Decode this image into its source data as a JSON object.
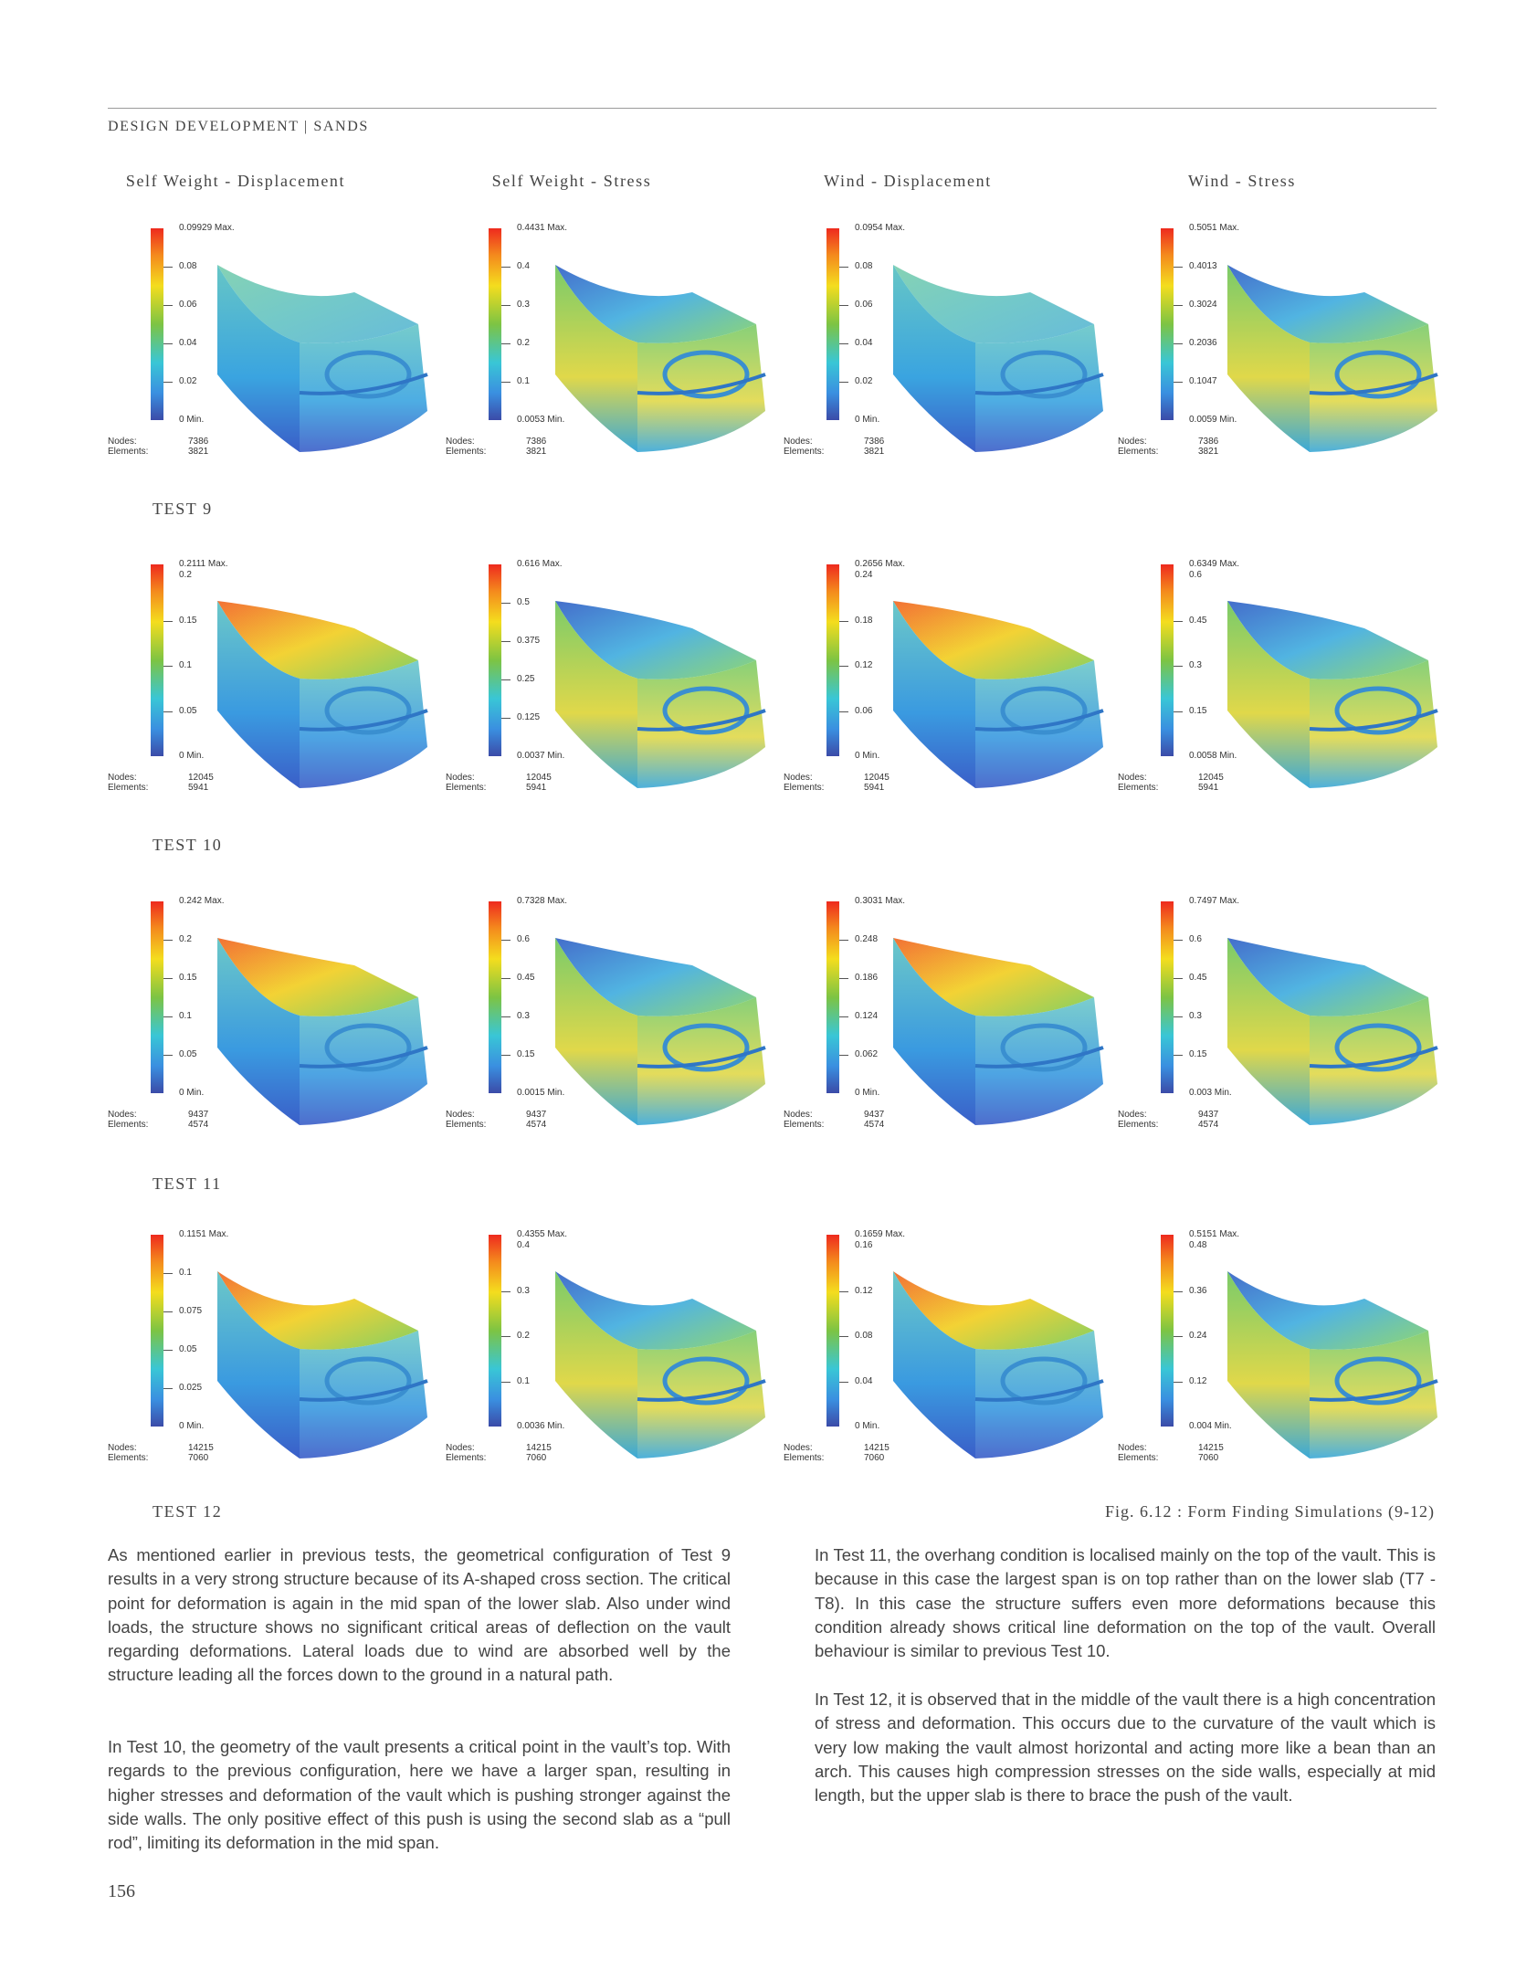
{
  "header": "DESIGN DEVELOPMENT  |  SANDS",
  "column_titles": [
    "Self Weight - Displacement",
    "Self Weight - Stress",
    "Wind - Displacement",
    "Wind - Stress"
  ],
  "rows": [
    {
      "label": "TEST 9",
      "nodes": "7386",
      "elements": "3821",
      "cells": [
        {
          "max": "0.09929 Max.",
          "min": "0 Min.",
          "ticks": [
            "0.08",
            "0.06",
            "0.04",
            "0.02"
          ]
        },
        {
          "max": "0.4431 Max.",
          "min": "0.0053 Min.",
          "ticks": [
            "0.4",
            "0.3",
            "0.2",
            "0.1"
          ]
        },
        {
          "max": "0.0954 Max.",
          "min": "0 Min.",
          "ticks": [
            "0.08",
            "0.06",
            "0.04",
            "0.02"
          ]
        },
        {
          "max": "0.5051 Max.",
          "min": "0.0059 Min.",
          "ticks": [
            "0.4013",
            "0.3024",
            "0.2036",
            "0.1047"
          ]
        }
      ]
    },
    {
      "label": "TEST 10",
      "nodes": "12045",
      "elements": "5941",
      "cells": [
        {
          "max": "0.2111 Max.",
          "top": "0.2",
          "min": "0 Min.",
          "ticks": [
            "0.15",
            "0.1",
            "0.05"
          ]
        },
        {
          "max": "0.616 Max.",
          "min": "0.0037 Min.",
          "ticks": [
            "0.5",
            "0.375",
            "0.25",
            "0.125"
          ]
        },
        {
          "max": "0.2656 Max.",
          "top": "0.24",
          "min": "0 Min.",
          "ticks": [
            "0.18",
            "0.12",
            "0.06"
          ]
        },
        {
          "max": "0.6349 Max.",
          "top": "0.6",
          "min": "0.0058 Min.",
          "ticks": [
            "0.45",
            "0.3",
            "0.15"
          ]
        }
      ]
    },
    {
      "label": "TEST 11",
      "nodes": "9437",
      "elements": "4574",
      "cells": [
        {
          "max": "0.242 Max.",
          "min": "0 Min.",
          "ticks": [
            "0.2",
            "0.15",
            "0.1",
            "0.05"
          ]
        },
        {
          "max": "0.7328 Max.",
          "min": "0.0015 Min.",
          "ticks": [
            "0.6",
            "0.45",
            "0.3",
            "0.15"
          ]
        },
        {
          "max": "0.3031 Max.",
          "min": "0 Min.",
          "ticks": [
            "0.248",
            "0.186",
            "0.124",
            "0.062"
          ]
        },
        {
          "max": "0.7497 Max.",
          "min": "0.003 Min.",
          "ticks": [
            "0.6",
            "0.45",
            "0.3",
            "0.15"
          ]
        }
      ]
    },
    {
      "label": "TEST 12",
      "nodes": "14215",
      "elements": "7060",
      "cells": [
        {
          "max": "0.1151 Max.",
          "min": "0 Min.",
          "ticks": [
            "0.1",
            "0.075",
            "0.05",
            "0.025"
          ]
        },
        {
          "max": "0.4355 Max.",
          "top": "0.4",
          "min": "0.0036 Min.",
          "ticks": [
            "0.3",
            "0.2",
            "0.1"
          ]
        },
        {
          "max": "0.1659 Max.",
          "top": "0.16",
          "min": "0 Min.",
          "ticks": [
            "0.12",
            "0.08",
            "0.04"
          ]
        },
        {
          "max": "0.5151 Max.",
          "top": "0.48",
          "min": "0.004 Min.",
          "ticks": [
            "0.36",
            "0.24",
            "0.12"
          ]
        }
      ]
    }
  ],
  "nodes_label": "Nodes:",
  "elements_label": "Elements:",
  "caption": "Fig. 6.12 : Form Finding Simulations (9-12)",
  "paragraphs": {
    "left_1": "As mentioned earlier in previous tests, the geometrical configuration of Test 9 results in a very strong structure because of its A-shaped cross section. The critical point for deformation is again in the mid span of the lower slab. Also under wind loads, the structure shows no significant critical areas of deflection on the vault regarding deformations. Lateral loads due to wind are absorbed well by the structure leading all the forces down to the ground in a natural path.",
    "left_2": "In Test 10, the geometry of the vault presents a critical point in the vault’s top. With regards to the previous configuration, here we have a larger span, resulting in higher stresses and deformation of the vault which is pushing stronger against the side walls. The only positive effect of this push is using the second slab as a “pull rod”, limiting its deformation in the mid span.",
    "right_1": "In Test 11, the overhang condition is localised mainly on the top of the vault. This is because in this case the largest span is on top rather than on the lower slab (T7 - T8). In this case the structure suffers even more deformations because this condition already shows critical line deformation on the top of the vault. Overall behaviour is similar to previous Test 10.",
    "right_2": "In Test 12, it is observed that in the middle of the vault there is a high concentration of stress and deformation. This occurs due to the curvature of the vault which is very low making the vault almost horizontal and acting more like a bean than an arch. This causes high compression stresses on the side walls, especially at mid length, but the upper slab is there to brace the push of the vault."
  },
  "page_number": "156"
}
